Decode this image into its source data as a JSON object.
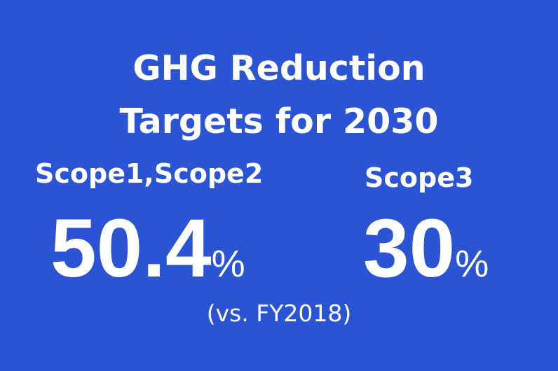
{
  "title": {
    "line1": "GHG Reduction",
    "line2": "Targets for 2030"
  },
  "targets": [
    {
      "label": "Scope1,Scope2",
      "value": "50.4",
      "unit": "%"
    },
    {
      "label": "Scope3",
      "value": "30",
      "unit": "%"
    }
  ],
  "note": "(vs. FY2018)",
  "colors": {
    "background": "#2b54d4",
    "text": "#ffffff"
  }
}
